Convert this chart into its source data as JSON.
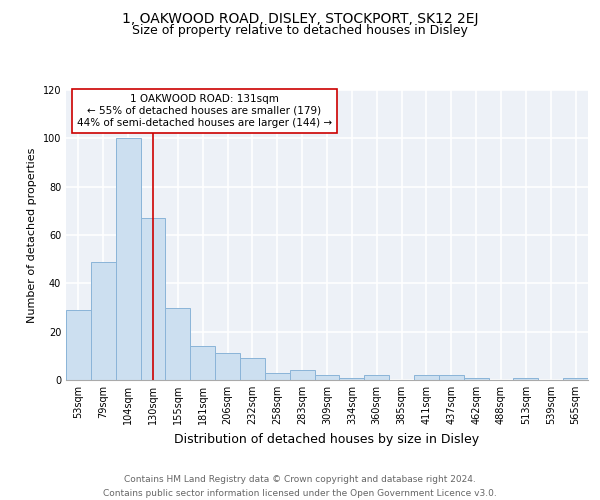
{
  "title": "1, OAKWOOD ROAD, DISLEY, STOCKPORT, SK12 2EJ",
  "subtitle": "Size of property relative to detached houses in Disley",
  "xlabel": "Distribution of detached houses by size in Disley",
  "ylabel": "Number of detached properties",
  "categories": [
    "53sqm",
    "79sqm",
    "104sqm",
    "130sqm",
    "155sqm",
    "181sqm",
    "206sqm",
    "232sqm",
    "258sqm",
    "283sqm",
    "309sqm",
    "334sqm",
    "360sqm",
    "385sqm",
    "411sqm",
    "437sqm",
    "462sqm",
    "488sqm",
    "513sqm",
    "539sqm",
    "565sqm"
  ],
  "values": [
    29,
    49,
    100,
    67,
    30,
    14,
    11,
    9,
    3,
    4,
    2,
    1,
    2,
    0,
    2,
    2,
    1,
    0,
    1,
    0,
    1
  ],
  "bar_color": "#ccdff0",
  "bar_edge_color": "#8ab4d8",
  "vline_x_idx": 3,
  "vline_color": "#cc0000",
  "annotation_line1": "1 OAKWOOD ROAD: 131sqm",
  "annotation_line2": "← 55% of detached houses are smaller (179)",
  "annotation_line3": "44% of semi-detached houses are larger (144) →",
  "annotation_box_color": "white",
  "annotation_box_edge_color": "#cc0000",
  "footnote": "Contains HM Land Registry data © Crown copyright and database right 2024.\nContains public sector information licensed under the Open Government Licence v3.0.",
  "ylim": [
    0,
    120
  ],
  "yticks": [
    0,
    20,
    40,
    60,
    80,
    100,
    120
  ],
  "background_color": "#edf1f7",
  "grid_color": "white",
  "title_fontsize": 10,
  "subtitle_fontsize": 9,
  "xlabel_fontsize": 9,
  "ylabel_fontsize": 8,
  "tick_fontsize": 7,
  "annotation_fontsize": 7.5,
  "footnote_fontsize": 6.5
}
